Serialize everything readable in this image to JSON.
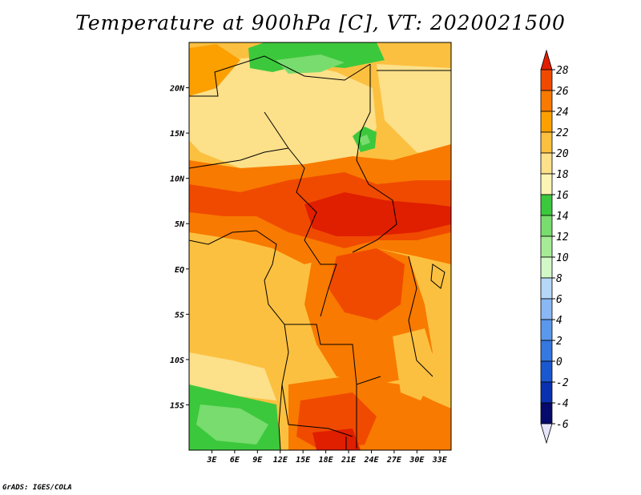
{
  "title": "Temperature at 900hPa [C], VT: 2020021500",
  "credit": "GrADS: IGES/COLA",
  "map": {
    "lon_range": [
      0,
      34.5
    ],
    "lat_range": [
      -20,
      25
    ],
    "lon_ticks": [
      {
        "value": 3,
        "label": "3E"
      },
      {
        "value": 6,
        "label": "6E"
      },
      {
        "value": 9,
        "label": "9E"
      },
      {
        "value": 12,
        "label": "12E"
      },
      {
        "value": 15,
        "label": "15E"
      },
      {
        "value": 18,
        "label": "18E"
      },
      {
        "value": 21,
        "label": "21E"
      },
      {
        "value": 24,
        "label": "24E"
      },
      {
        "value": 27,
        "label": "27E"
      },
      {
        "value": 30,
        "label": "30E"
      },
      {
        "value": 33,
        "label": "33E"
      }
    ],
    "lat_ticks": [
      {
        "value": 20,
        "label": "20N"
      },
      {
        "value": 15,
        "label": "15N"
      },
      {
        "value": 10,
        "label": "10N"
      },
      {
        "value": 5,
        "label": "5N"
      },
      {
        "value": 0,
        "label": "EQ"
      },
      {
        "value": -5,
        "label": "5S"
      },
      {
        "value": -10,
        "label": "10S"
      },
      {
        "value": -15,
        "label": "15S"
      }
    ]
  },
  "colorbar": {
    "levels": [
      "28",
      "26",
      "24",
      "22",
      "20",
      "18",
      "16",
      "14",
      "12",
      "10",
      "8",
      "6",
      "4",
      "2",
      "0",
      "-2",
      "-4",
      "-6"
    ],
    "colors": [
      "#e01e00",
      "#f04a00",
      "#f87a00",
      "#fca000",
      "#fcc040",
      "#fce08a",
      "#fcf4b4",
      "#3cc83c",
      "#78dc6e",
      "#a6ec96",
      "#d2f8c8",
      "#b6d8f8",
      "#8ab8f4",
      "#5a98ec",
      "#3478e0",
      "#1a58d0",
      "#0a32b0",
      "#060a6c",
      "#e6e6fa"
    ]
  }
}
